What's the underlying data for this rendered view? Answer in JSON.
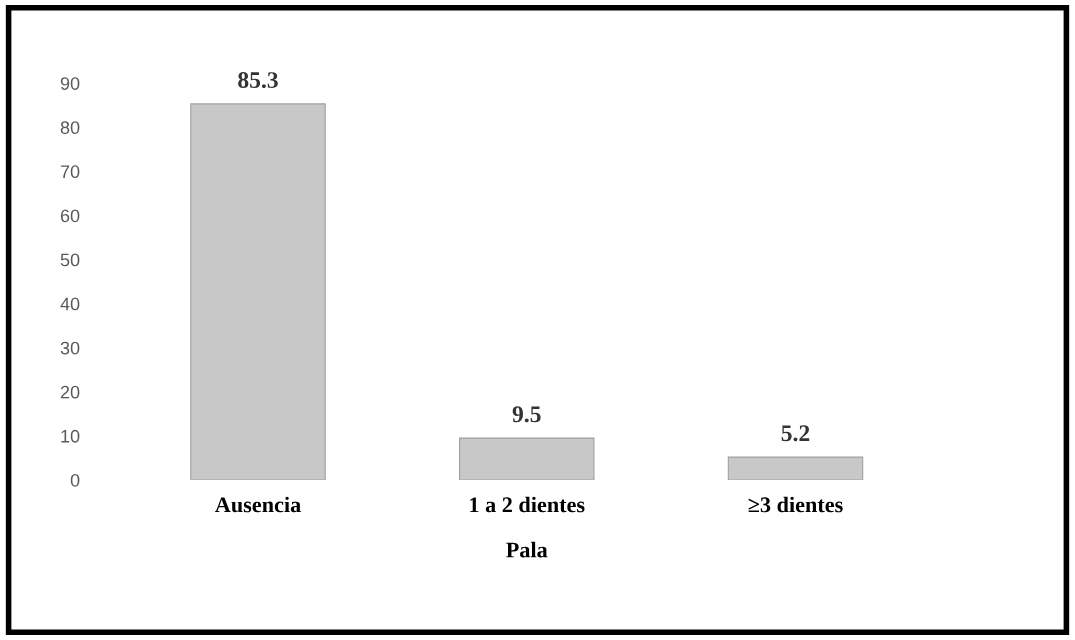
{
  "chart_data": {
    "type": "bar",
    "categories": [
      "Ausencia",
      "1 a 2 dientes",
      "≥3 dientes"
    ],
    "values": [
      85.3,
      9.5,
      5.2
    ],
    "color": "#c8c8c8",
    "xlabel": "Pala",
    "ylim": [
      0,
      90
    ],
    "yticks": [
      0,
      10,
      20,
      30,
      40,
      50,
      60,
      70,
      80,
      90
    ],
    "data_labels": true
  }
}
